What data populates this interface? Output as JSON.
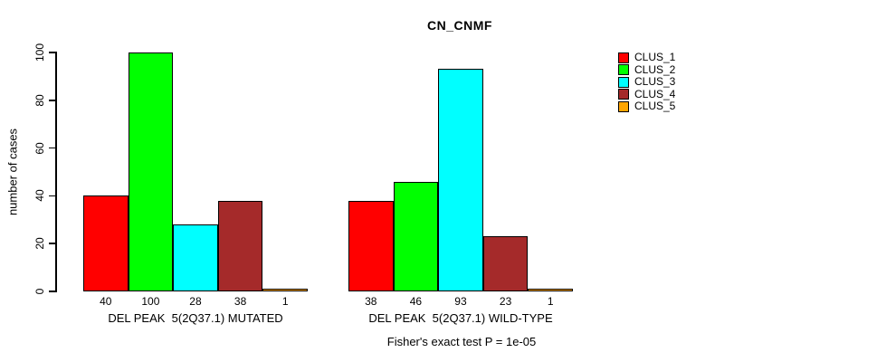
{
  "chart_data": {
    "type": "bar",
    "title": "CN_CNMF",
    "ylabel": "number of cases",
    "xlabel": "",
    "ylim": [
      0,
      100
    ],
    "yticks": [
      0,
      20,
      40,
      60,
      80,
      100
    ],
    "grid": false,
    "legend_position": "right",
    "bar_value_labels_visible": true,
    "categories": [
      "DEL PEAK  5(2Q37.1) MUTATED",
      "DEL PEAK  5(2Q37.1) WILD-TYPE"
    ],
    "series": [
      {
        "name": "CLUS_1",
        "color": "#FF0000",
        "values": [
          40,
          38
        ]
      },
      {
        "name": "CLUS_2",
        "color": "#00FF00",
        "values": [
          100,
          46
        ]
      },
      {
        "name": "CLUS_3",
        "color": "#00FFFF",
        "values": [
          28,
          93
        ]
      },
      {
        "name": "CLUS_4",
        "color": "#A52A2A",
        "values": [
          38,
          23
        ]
      },
      {
        "name": "CLUS_5",
        "color": "#FFA500",
        "values": [
          1,
          1
        ]
      }
    ],
    "annotation": "Fisher's exact test P = 1e-05",
    "axis_color": "#000000",
    "background_color": "#FFFFFF"
  }
}
